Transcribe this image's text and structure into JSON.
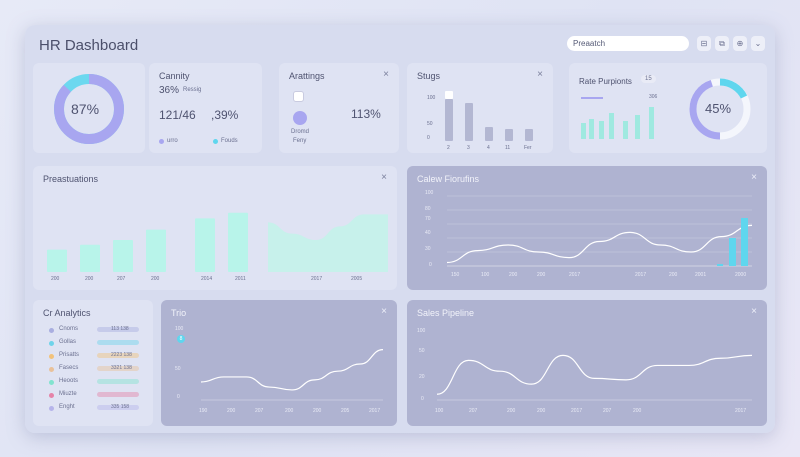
{
  "header": {
    "title": "HR Dashboard",
    "search_value": "Preaatch"
  },
  "top": {
    "donut_left": {
      "label": "87%",
      "value": 0.87
    },
    "cannity": {
      "title": "Cannity",
      "pct": "36%",
      "pct_note": "Ressig",
      "a": "121/46",
      "b": ",39%",
      "legend1": "urro",
      "legend2": "Fouds"
    },
    "arattings": {
      "title": "Arattings",
      "value": "113%",
      "sub1": "Dromd",
      "sub2": "Feny"
    },
    "stugs": {
      "title": "Stugs",
      "y_ticks": [
        "100",
        "50",
        "0"
      ],
      "x_ticks": [
        "2",
        "3",
        "4",
        "11",
        "Fer"
      ]
    },
    "rate": {
      "title": "Rate Purpionts",
      "badge": "15",
      "tick": "306",
      "donut_label": "45%",
      "donut_value": 0.45
    }
  },
  "mid": {
    "preastuations": {
      "title": "Preastuations",
      "x_ticks": [
        "200",
        "200",
        "207",
        "200",
        "2014",
        "2011",
        "2017",
        "2005"
      ]
    },
    "calew": {
      "title": "Calew Fiorufins",
      "y_ticks": [
        "100",
        "80",
        "70",
        "40",
        "30",
        "0"
      ],
      "x_ticks": [
        "150",
        "100",
        "200",
        "200",
        "2017",
        "2017",
        "200",
        "2001",
        "2000"
      ]
    }
  },
  "bottom": {
    "analytics": {
      "title": "Cr Analytics",
      "rows": [
        {
          "label": "Cnoms",
          "value": "113 138",
          "color": "#a9aee0"
        },
        {
          "label": "Gollas",
          "value": "",
          "color": "#6fd3ea"
        },
        {
          "label": "Prisatts",
          "value": "2223 138",
          "color": "#f2c27b"
        },
        {
          "label": "Fasecs",
          "value": "3321 138",
          "color": "#e9c19a"
        },
        {
          "label": "Heoots",
          "value": "",
          "color": "#82e3cf"
        },
        {
          "label": "Miuzte",
          "value": "",
          "color": "#e583a8"
        },
        {
          "label": "Enght",
          "value": "335 158",
          "color": "#b6b4ea"
        }
      ]
    },
    "trio": {
      "title": "Trio",
      "badge": "8",
      "y_ticks": [
        "100",
        "50",
        "0"
      ],
      "x_ticks": [
        "190",
        "200",
        "207",
        "200",
        "200",
        "205",
        "2017"
      ]
    },
    "sales": {
      "title": "Sales Pipeline",
      "y_ticks": [
        "100",
        "50",
        "20",
        "0"
      ],
      "x_ticks": [
        "100",
        "207",
        "200",
        "200",
        "2017",
        "207",
        "200",
        "2017"
      ]
    }
  },
  "colors": {
    "mint": "#b8f4ea",
    "cyan": "#5fd6ee",
    "lavender": "#a8a6f0"
  },
  "chart_data": [
    {
      "type": "bar",
      "name": "Preastuations",
      "categories": [
        "200",
        "200",
        "207",
        "200",
        "2014",
        "2011"
      ],
      "values": [
        28,
        34,
        40,
        53,
        67,
        74
      ],
      "ylim": [
        0,
        100
      ]
    },
    {
      "type": "area",
      "name": "Preastuations-area",
      "x": [
        0,
        1,
        2,
        3,
        4,
        5
      ],
      "values": [
        62,
        48,
        40,
        57,
        72,
        72
      ],
      "ylim": [
        0,
        100
      ]
    },
    {
      "type": "line",
      "name": "Calew Fiorufins",
      "x": [
        0,
        1,
        2,
        3,
        4,
        5,
        6,
        7,
        8,
        9,
        10
      ],
      "values": [
        5,
        22,
        30,
        20,
        12,
        35,
        48,
        30,
        20,
        42,
        58
      ],
      "ylim": [
        0,
        100
      ]
    },
    {
      "type": "line",
      "name": "Trio",
      "x": [
        0,
        1,
        2,
        3,
        4,
        5,
        6,
        7,
        8
      ],
      "values": [
        25,
        32,
        32,
        18,
        14,
        28,
        40,
        50,
        70
      ],
      "ylim": [
        0,
        100
      ]
    },
    {
      "type": "line",
      "name": "Sales Pipeline",
      "x": [
        0,
        1,
        2,
        3,
        4,
        5,
        6,
        7,
        8,
        9,
        10
      ],
      "values": [
        8,
        55,
        40,
        22,
        62,
        30,
        28,
        48,
        48,
        58,
        62
      ],
      "ylim": [
        0,
        100
      ]
    }
  ]
}
